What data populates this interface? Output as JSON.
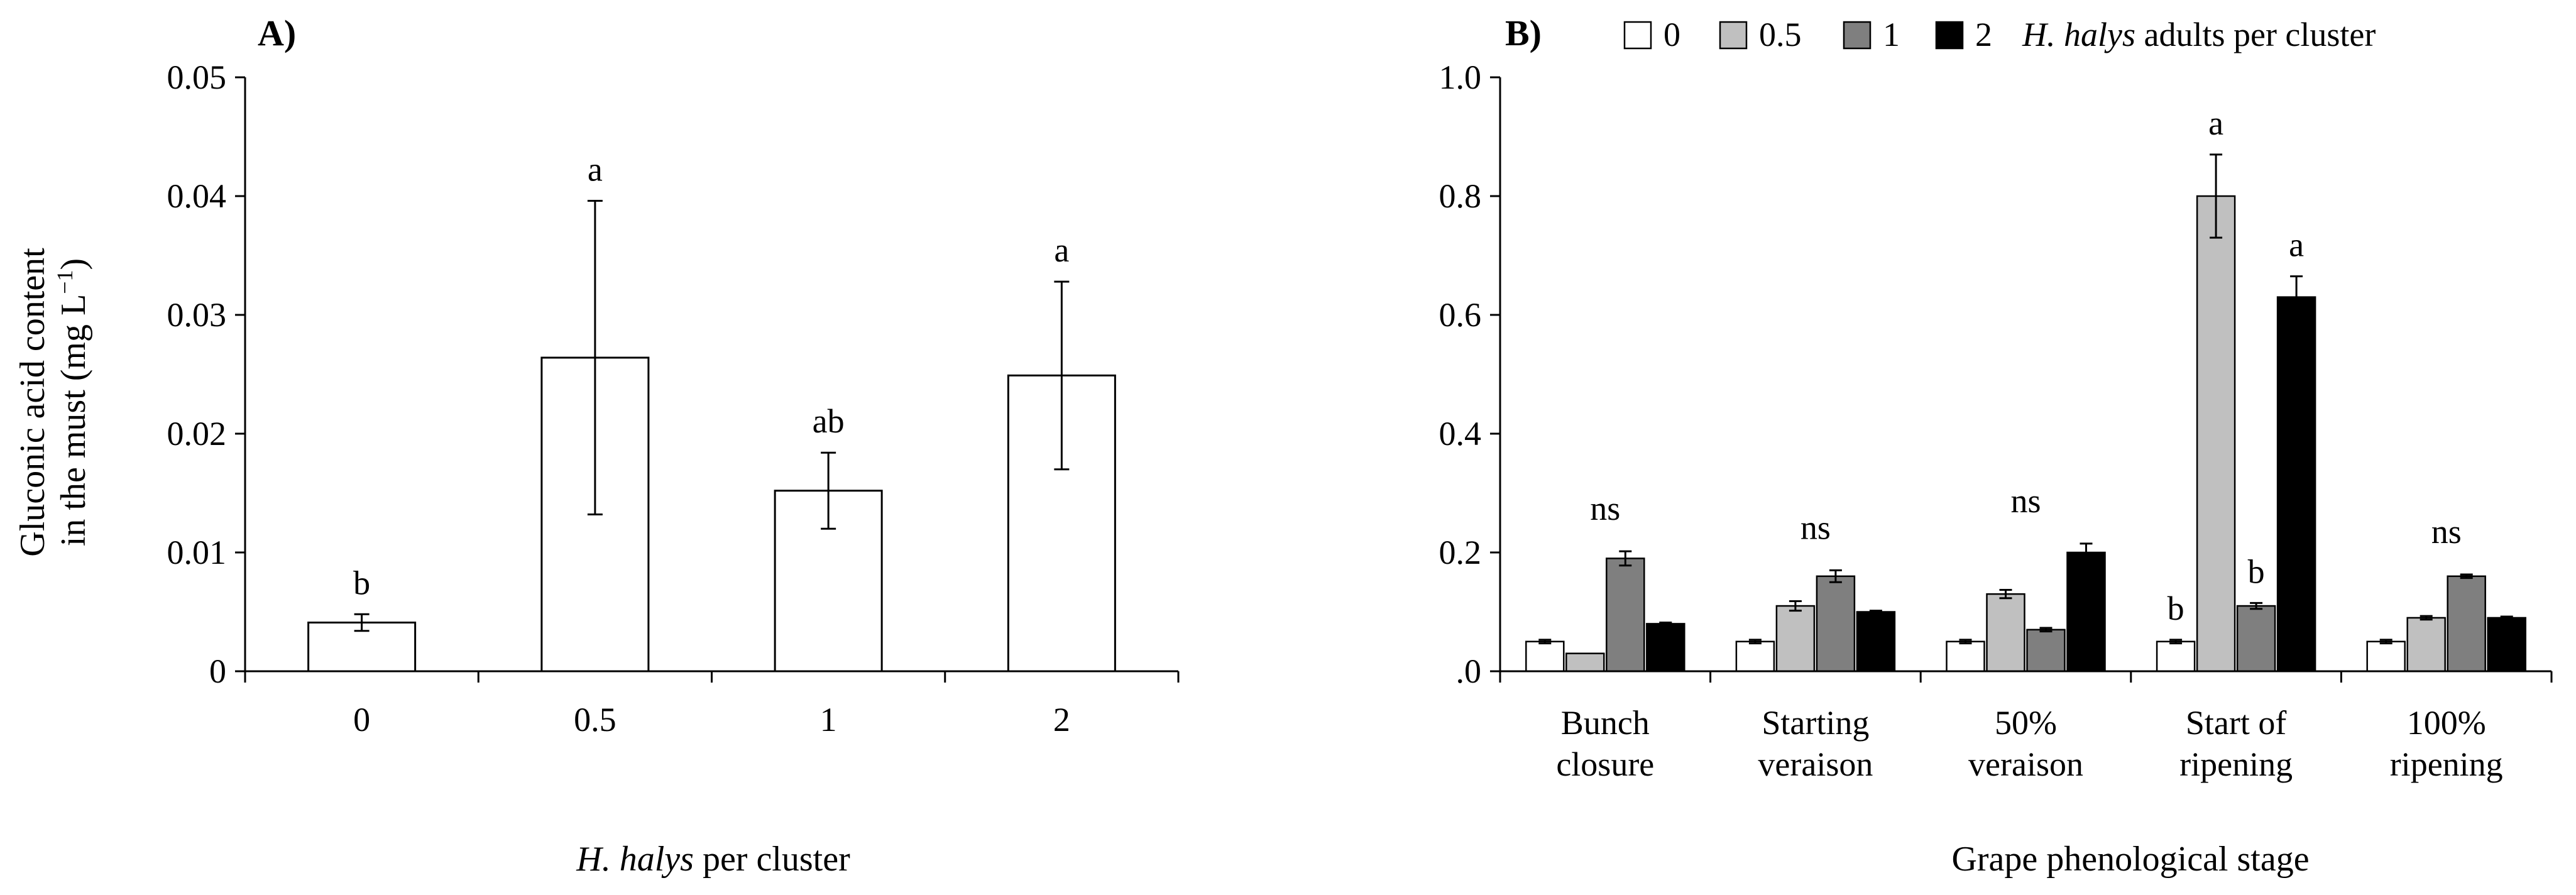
{
  "chart_data": [
    {
      "panel_label": "A)",
      "type": "bar",
      "categories": [
        "0",
        "0.5",
        "1",
        "2"
      ],
      "values": [
        0.0041,
        0.0264,
        0.0152,
        0.0249
      ],
      "errors": [
        0.0007,
        0.0132,
        0.0032,
        0.0079
      ],
      "significance": [
        "b",
        "a",
        "ab",
        "a"
      ],
      "bar_color": "#ffffff",
      "y_tick_labels": [
        "0",
        "0.01",
        "0.02",
        "0.03",
        "0.04",
        "0.05"
      ],
      "ylim": [
        0,
        0.05
      ],
      "ylabel_line1": "Gluconic acid content",
      "ylabel_line2_prefix": "in the must (mg L",
      "ylabel_sup": "−1",
      "ylabel_line2_suffix": ")",
      "xlabel_italic": "H. halys",
      "xlabel_rest": " per cluster",
      "grid": false
    },
    {
      "panel_label": "B)",
      "type": "bar",
      "categories": [
        [
          "Bunch",
          "closure"
        ],
        [
          "Starting",
          "veraison"
        ],
        [
          "50%",
          "veraison"
        ],
        [
          "Start of",
          "ripening"
        ],
        [
          "100%",
          "ripening"
        ]
      ],
      "series": [
        {
          "name": "0",
          "color": "#ffffff",
          "values": [
            0.05,
            0.05,
            0.05,
            0.05,
            0.05
          ],
          "errors": [
            0.003,
            0.003,
            0.003,
            0.003,
            0.003
          ]
        },
        {
          "name": "0.5",
          "color": "#c0c0c0",
          "values": [
            0.03,
            0.11,
            0.13,
            0.8,
            0.09
          ],
          "errors": [
            0.0,
            0.008,
            0.007,
            0.07,
            0.003
          ]
        },
        {
          "name": "1",
          "color": "#7f7f7f",
          "values": [
            0.19,
            0.16,
            0.07,
            0.11,
            0.16
          ],
          "errors": [
            0.012,
            0.01,
            0.003,
            0.005,
            0.003
          ]
        },
        {
          "name": "2",
          "color": "#000000",
          "values": [
            0.08,
            0.1,
            0.2,
            0.63,
            0.09
          ],
          "errors": [
            0.002,
            0.002,
            0.015,
            0.035,
            0.002
          ]
        }
      ],
      "group_labels": [
        "ns",
        "ns",
        "ns",
        null,
        "ns"
      ],
      "bar_labels": [
        {
          "group": 3,
          "series": 0,
          "text": "b"
        },
        {
          "group": 3,
          "series": 1,
          "text": "a"
        },
        {
          "group": 3,
          "series": 2,
          "text": "b"
        },
        {
          "group": 3,
          "series": 3,
          "text": "a"
        }
      ],
      "y_tick_labels": [
        ".0",
        "0.2",
        "0.4",
        "0.6",
        "0.8",
        "1.0"
      ],
      "ylim": [
        0,
        1.0
      ],
      "xlabel": "Grape phenological stage",
      "legend_suffix_italic": "H. halys",
      "legend_suffix_rest": " adults per cluster",
      "legend_position": "top",
      "grid": false
    }
  ]
}
